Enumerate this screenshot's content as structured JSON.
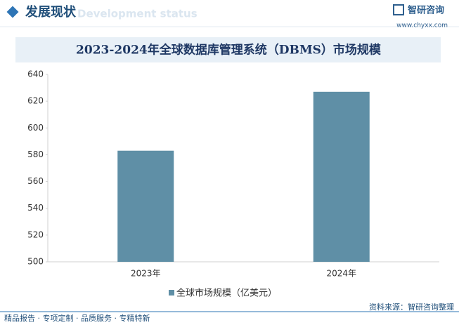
{
  "header": {
    "section_title": "发展现状",
    "section_subtitle": "Development status",
    "brand": "智研咨询",
    "url": "www.chyxx.com"
  },
  "chart_data": {
    "type": "bar",
    "title": "2023-2024年全球数据库管理系统（DBMS）市场规模",
    "categories": [
      "2023年",
      "2024年"
    ],
    "series": [
      {
        "name": "全球市场规模（亿美元）",
        "color": "#5f8fa6",
        "values": [
          583,
          627
        ]
      }
    ],
    "ylim": [
      500,
      640
    ],
    "yticks": [
      500,
      520,
      540,
      560,
      580,
      600,
      620,
      640
    ],
    "grid": false,
    "legend": "bottom"
  },
  "footer": {
    "services": "精品报告 · 专项定制 · 品质服务 · 专精特新",
    "source": "资料来源：智研咨询整理"
  }
}
